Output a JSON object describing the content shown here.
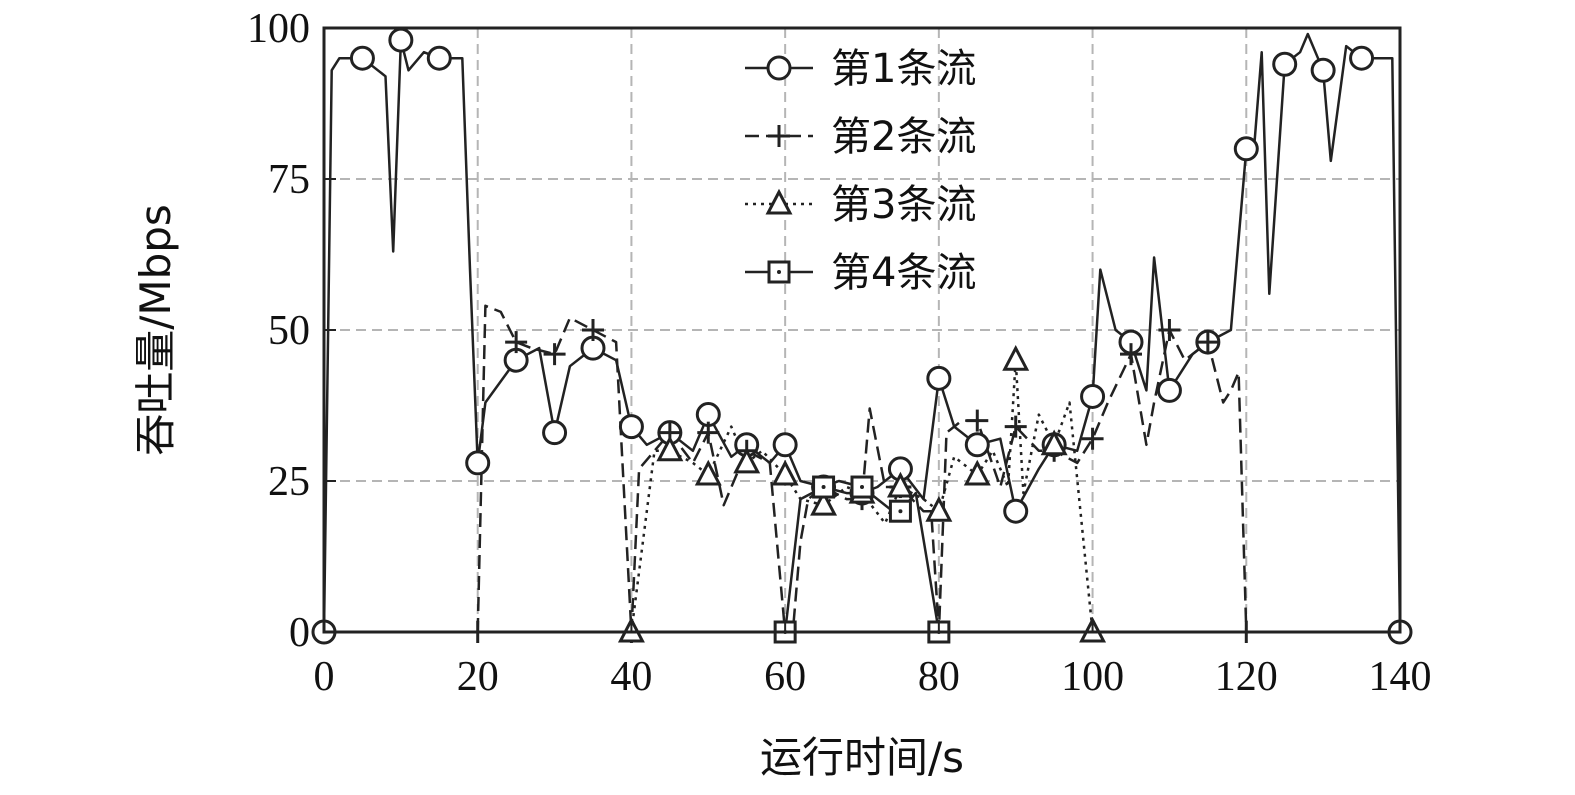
{
  "chart_data": {
    "type": "line",
    "title": "",
    "xlabel": "运行时间/s",
    "ylabel": "吞吐量/Mbps",
    "xlim": [
      0,
      140
    ],
    "ylim": [
      0,
      100
    ],
    "xticks": [
      "0",
      "20",
      "40",
      "60",
      "80",
      "100",
      "120",
      "140"
    ],
    "yticks": [
      "0",
      "25",
      "50",
      "75",
      "100"
    ],
    "grid": true,
    "legend_position": "top-center",
    "series": [
      {
        "name": "第1条流",
        "marker": "circle",
        "dash": "solid",
        "x": [
          0,
          1,
          2,
          5,
          8,
          9,
          10,
          11,
          13,
          15,
          18,
          19,
          20,
          21,
          25,
          28,
          30,
          32,
          35,
          38,
          40,
          42,
          45,
          48,
          50,
          53,
          55,
          58,
          60,
          62,
          65,
          68,
          70,
          72,
          75,
          78,
          80,
          82,
          85,
          88,
          90,
          93,
          95,
          98,
          100,
          101,
          103,
          105,
          107,
          108,
          110,
          113,
          115,
          118,
          120,
          121,
          122,
          123,
          125,
          127,
          128,
          130,
          131,
          133,
          135,
          138,
          139,
          140
        ],
        "y": [
          0,
          93,
          95,
          95,
          92,
          63,
          98,
          93,
          96,
          95,
          95,
          60,
          28,
          38,
          45,
          47,
          33,
          44,
          47,
          45,
          34,
          31,
          33,
          30,
          36,
          29,
          31,
          28,
          31,
          25,
          24,
          23,
          23,
          24,
          27,
          22,
          42,
          34,
          31,
          32,
          20,
          27,
          31,
          30,
          39,
          60,
          50,
          48,
          40,
          62,
          40,
          46,
          48,
          50,
          80,
          80,
          96,
          56,
          94,
          96,
          99,
          93,
          78,
          97,
          95,
          95,
          95,
          0
        ]
      },
      {
        "name": "第2条流",
        "marker": "plus",
        "dash": "dashed",
        "x": [
          20,
          21,
          23,
          25,
          27,
          30,
          32,
          35,
          38,
          40,
          41,
          45,
          48,
          50,
          52,
          55,
          58,
          60,
          61,
          62,
          63,
          65,
          68,
          70,
          71,
          73,
          75,
          78,
          79,
          80,
          81,
          83,
          85,
          88,
          90,
          93,
          95,
          98,
          100,
          102,
          105,
          107,
          108,
          110,
          112,
          115,
          117,
          118,
          119,
          120
        ],
        "y": [
          0,
          54,
          53,
          48,
          47,
          46,
          52,
          50,
          48,
          0,
          27,
          33,
          28,
          33,
          21,
          30,
          28,
          0,
          0,
          15,
          22,
          24,
          22,
          22,
          37,
          24,
          24,
          20,
          20,
          0,
          33,
          35,
          35,
          24,
          34,
          30,
          30,
          28,
          32,
          38,
          46,
          31,
          38,
          50,
          45,
          48,
          38,
          40,
          43,
          0
        ]
      },
      {
        "name": "第3条流",
        "marker": "triangle",
        "dash": "dotted",
        "x": [
          40,
          43,
          45,
          48,
          50,
          53,
          55,
          57,
          60,
          62,
          65,
          68,
          70,
          73,
          75,
          78,
          80,
          82,
          85,
          87,
          89,
          90,
          91,
          93,
          95,
          97,
          100
        ],
        "y": [
          0,
          30,
          30,
          28,
          26,
          34,
          28,
          30,
          26,
          22,
          21,
          24,
          23,
          18,
          24,
          22,
          20,
          29,
          26,
          30,
          24,
          45,
          23,
          36,
          31,
          38,
          0
        ]
      },
      {
        "name": "第4条流",
        "marker": "square",
        "dash": "solid",
        "x": [
          60,
          62,
          65,
          67,
          70,
          72,
          74,
          75,
          77,
          80
        ],
        "y": [
          0,
          22,
          24,
          25,
          24,
          22,
          20,
          20,
          23,
          0
        ]
      }
    ]
  }
}
